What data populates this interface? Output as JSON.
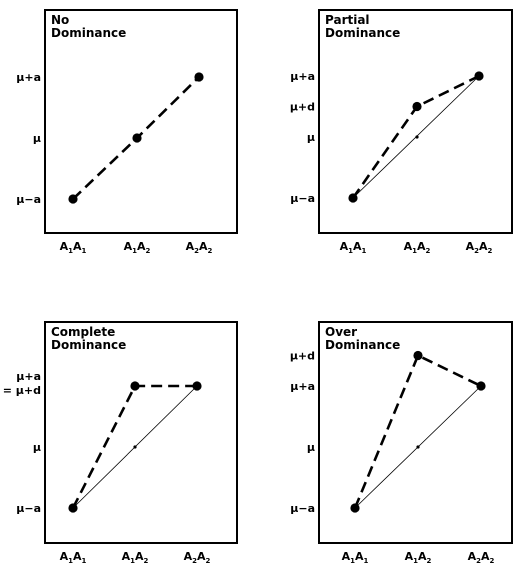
{
  "chart_data": [
    {
      "type": "line",
      "title_lines": [
        "No",
        "Dominance"
      ],
      "categories": [
        "A1A1",
        "A1A2",
        "A2A2"
      ],
      "tick_labels": {
        "y": [
          {
            "value": 1,
            "text": "μ+a"
          },
          {
            "value": 0,
            "text": "μ"
          },
          {
            "value": -1,
            "text": "μ−a"
          }
        ]
      },
      "series": [
        {
          "values": [
            -1,
            0,
            1
          ]
        }
      ],
      "additive_line": false,
      "midpoint": false,
      "ylim": [
        -1.6,
        1.5
      ]
    },
    {
      "type": "line",
      "title_lines": [
        "Partial",
        "Dominance"
      ],
      "categories": [
        "A1A1",
        "A1A2",
        "A2A2"
      ],
      "tick_labels": {
        "y": [
          {
            "value": 1,
            "text": "μ+a"
          },
          {
            "value": 0.5,
            "text": "μ+d"
          },
          {
            "value": 0,
            "text": "μ"
          },
          {
            "value": -1,
            "text": "μ−a"
          }
        ]
      },
      "series": [
        {
          "values": [
            -1,
            0.5,
            1
          ]
        }
      ],
      "additive_line": true,
      "midpoint": true,
      "ylim": [
        -1.6,
        1.5
      ]
    },
    {
      "type": "line",
      "title_lines": [
        "Complete",
        "Dominance"
      ],
      "categories": [
        "A1A1",
        "A1A2",
        "A2A2"
      ],
      "tick_labels": {
        "y": [
          {
            "value": 1,
            "text": "μ+a"
          },
          {
            "value": 1,
            "text": "= μ+d"
          },
          {
            "value": 0,
            "text": "μ"
          },
          {
            "value": -1,
            "text": "μ−a"
          }
        ]
      },
      "series": [
        {
          "values": [
            -1,
            1,
            1
          ]
        }
      ],
      "additive_line": true,
      "midpoint": true,
      "ylim": [
        -1.6,
        1.6
      ]
    },
    {
      "type": "line",
      "title_lines": [
        "Over",
        "Dominance"
      ],
      "categories": [
        "A1A1",
        "A1A2",
        "A2A2"
      ],
      "tick_labels": {
        "y": [
          {
            "value": 1.5,
            "text": "μ+d"
          },
          {
            "value": 1,
            "text": "μ+a"
          },
          {
            "value": 0,
            "text": "μ"
          },
          {
            "value": -1,
            "text": "μ−a"
          }
        ]
      },
      "series": [
        {
          "values": [
            -1,
            1.5,
            1
          ]
        }
      ],
      "additive_line": true,
      "midpoint": true,
      "ylim": [
        -1.6,
        1.9
      ]
    }
  ]
}
